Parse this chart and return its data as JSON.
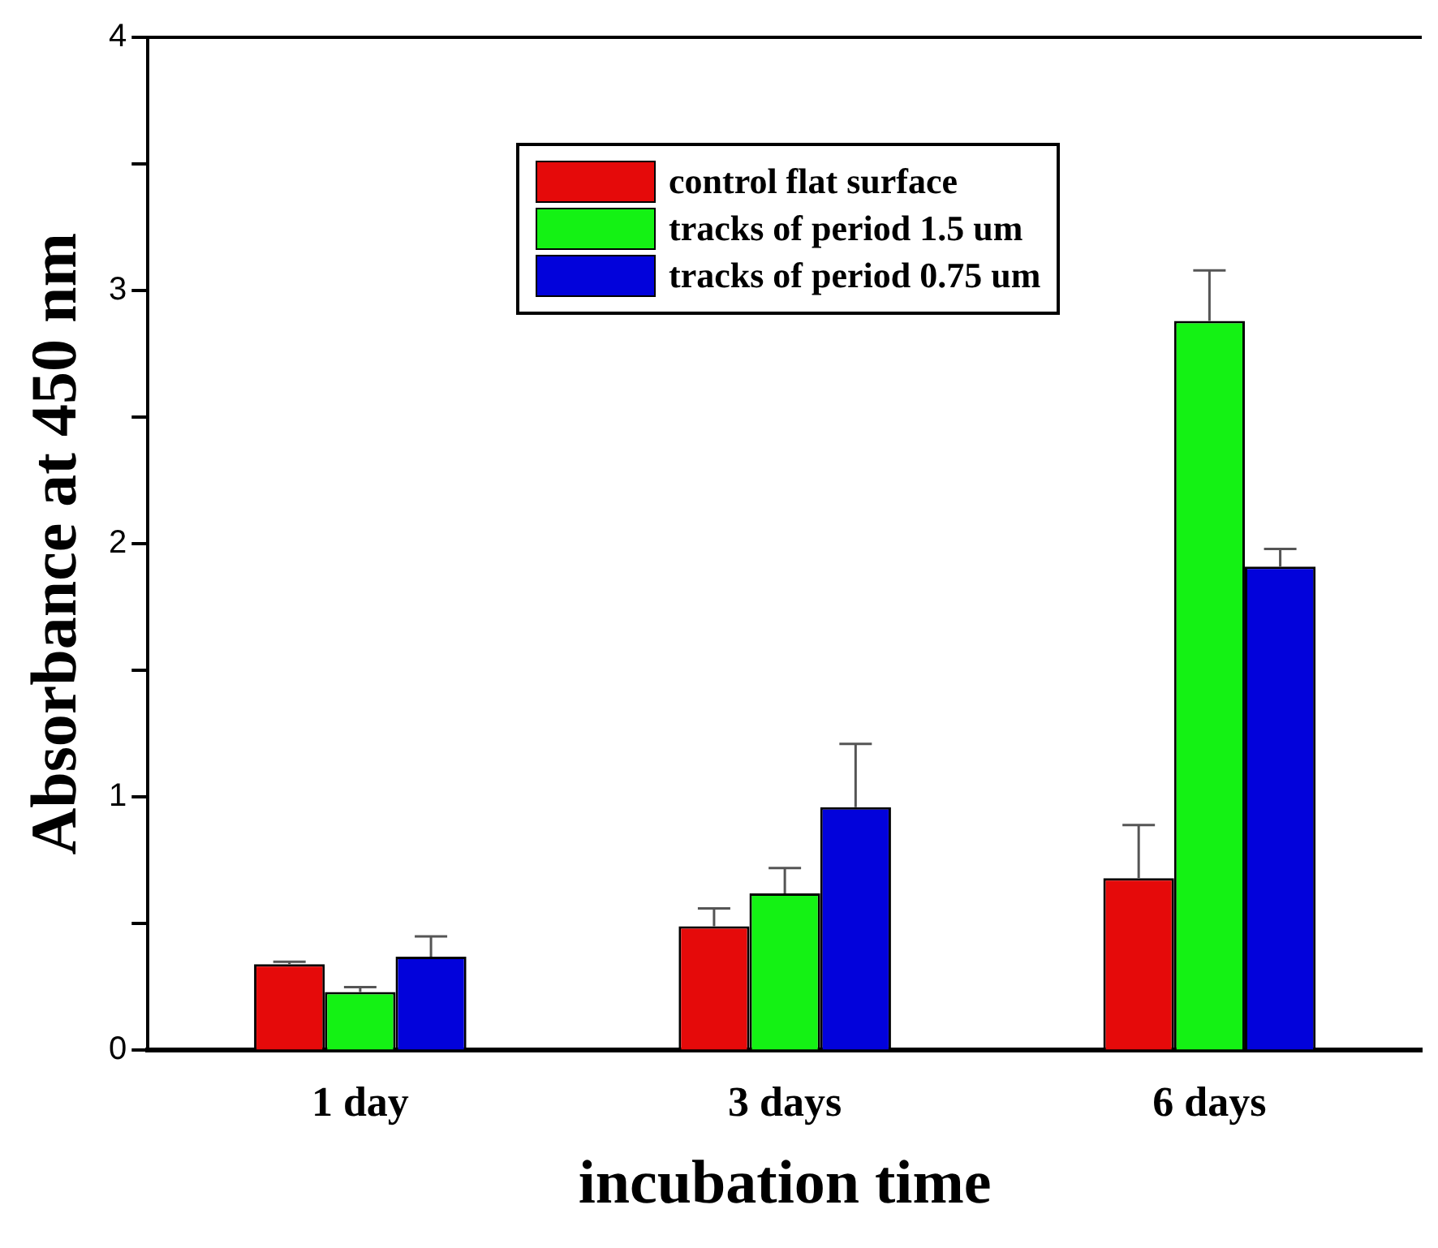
{
  "chart_data": {
    "type": "bar",
    "xlabel": "incubation time",
    "ylabel": "Absorbance at 450 nm",
    "categories": [
      "1 day",
      "3 days",
      "6 days"
    ],
    "series": [
      {
        "name": "control flat surface",
        "color": "#e50a0a",
        "values": [
          0.34,
          0.49,
          0.68
        ],
        "errors": [
          [
            0.34,
            0.35
          ],
          [
            0.49,
            0.56
          ],
          [
            0.68,
            0.89
          ]
        ]
      },
      {
        "name": "tracks of period 1.5 um",
        "color": "#14f214",
        "values": [
          0.23,
          0.62,
          2.88
        ],
        "errors": [
          [
            0.23,
            0.25
          ],
          [
            0.62,
            0.72
          ],
          [
            2.88,
            3.08
          ]
        ]
      },
      {
        "name": "tracks of period 0.75 um",
        "color": "#0202db",
        "values": [
          0.37,
          0.96,
          1.91
        ],
        "errors": [
          [
            0.37,
            0.45
          ],
          [
            0.96,
            1.21
          ],
          [
            1.91,
            1.98
          ]
        ]
      }
    ],
    "ylim": [
      0,
      4
    ],
    "yticks": [
      0,
      {
        "value": 0.5,
        "label": null
      },
      1,
      {
        "value": 1.5,
        "label": null
      },
      2,
      {
        "value": 2.5,
        "label": null
      },
      3,
      {
        "value": 3.5,
        "label": null
      },
      4
    ],
    "grid": false,
    "legend": "top right"
  }
}
